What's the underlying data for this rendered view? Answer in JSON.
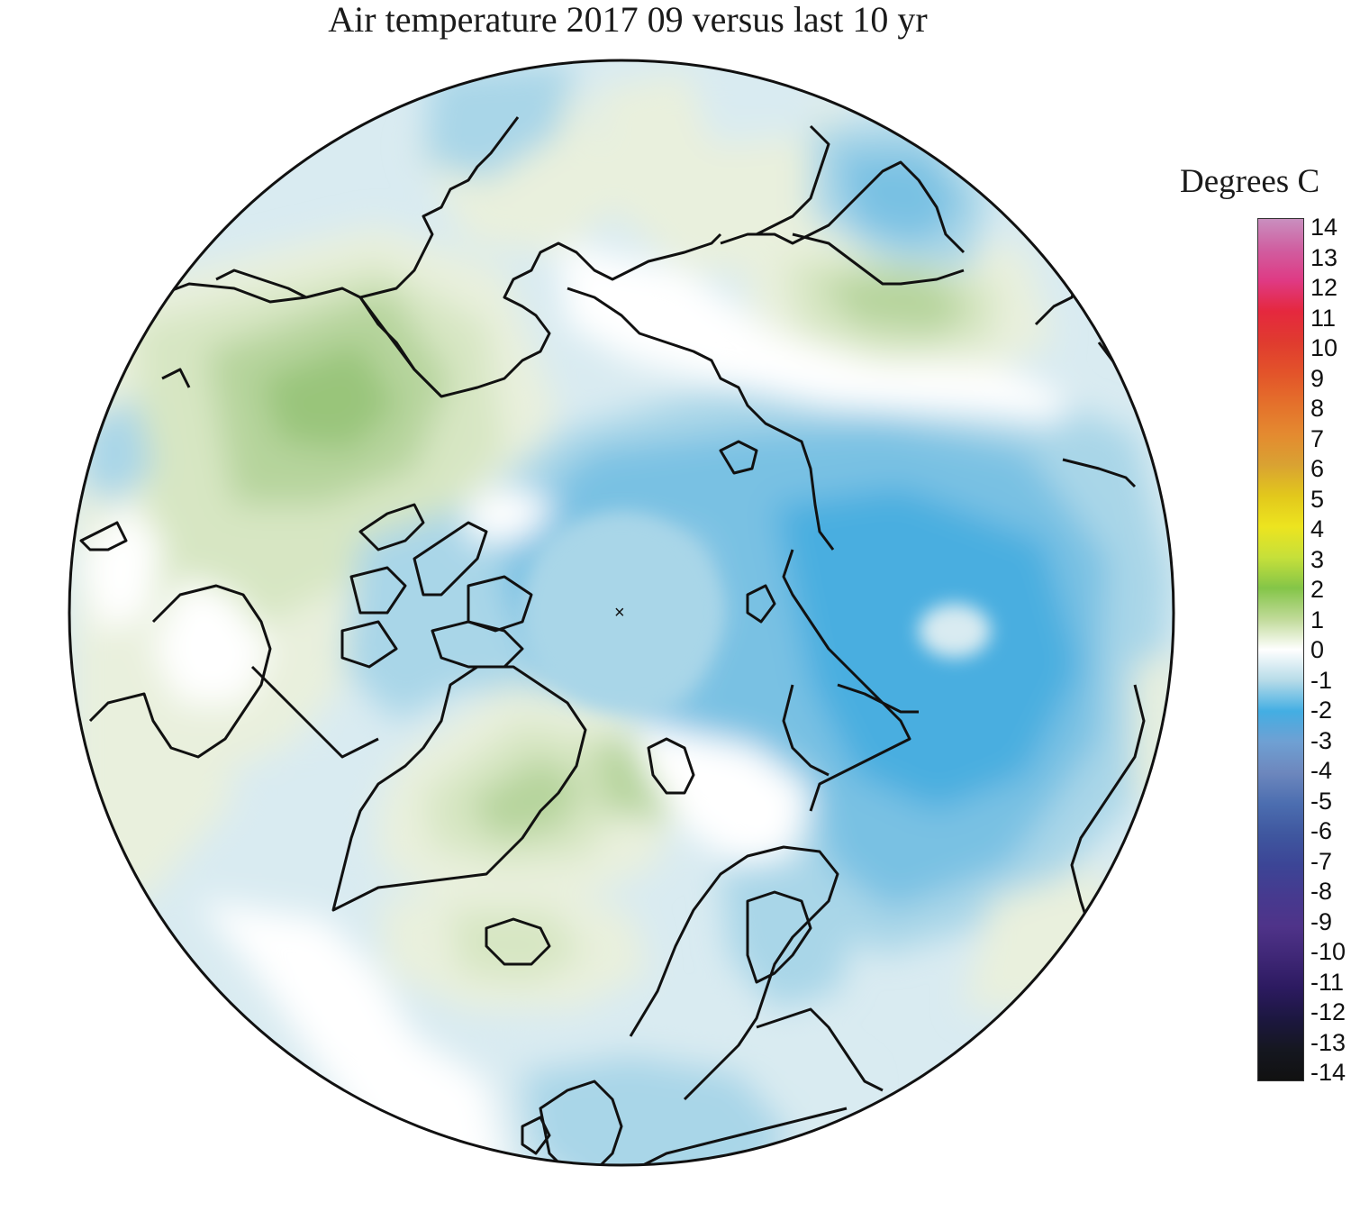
{
  "title": "Air temperature 2017 09 versus last 10 yr",
  "legend": {
    "title": "Degrees C",
    "ticks": [
      "14",
      "13",
      "12",
      "11",
      "10",
      "9",
      "8",
      "7",
      "6",
      "5",
      "4",
      "3",
      "2",
      "1",
      "0",
      "-1",
      "-2",
      "-3",
      "-4",
      "-5",
      "-6",
      "-7",
      "-8",
      "-9",
      "-10",
      "-11",
      "-12",
      "-13",
      "-14"
    ],
    "colors": {
      "14": "#c98fbf",
      "13": "#d05ea0",
      "12": "#df3a84",
      "11": "#e5283e",
      "10": "#e03b2f",
      "9": "#e3532a",
      "8": "#e4702b",
      "7": "#e48a30",
      "6": "#d9a232",
      "5": "#e2c81c",
      "4": "#ede41f",
      "3": "#c6e03a",
      "2": "#84c548",
      "1": "#c0da98",
      "0": "#ffffff",
      "-1": "#b6dbe8",
      "-2": "#43aee3",
      "-3": "#6fa0d3",
      "-4": "#6d87bd",
      "-5": "#4c6eb0",
      "-6": "#3f579f",
      "-7": "#3c4596",
      "-8": "#463a8f",
      "-9": "#4f3389",
      "-10": "#3f2776",
      "-11": "#2c1a60",
      "-12": "#1c1740",
      "-13": "#151720",
      "-14": "#111111"
    }
  },
  "map": {
    "projection": "north polar stereographic",
    "fill_colors": {
      "green_strong": "#99c57a",
      "green_mid": "#b6d49c",
      "green_light": "#d7e6c3",
      "green_pale": "#e9f0dd",
      "blue_pale": "#d9ebf1",
      "blue_light": "#a9d6e8",
      "blue_mid": "#79c1e3",
      "blue_strong": "#4aaee0",
      "coast": "#111111"
    }
  }
}
